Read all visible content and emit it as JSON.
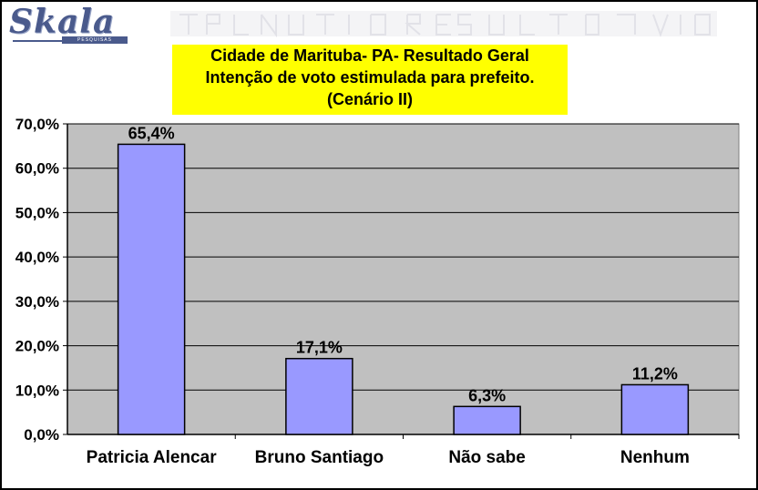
{
  "logo": {
    "text": "Skala",
    "subtitle": "PESQUISAS"
  },
  "title_lines": [
    "Cidade de Marituba- PA- Resultado Geral",
    "Intenção de voto estimulada para prefeito.",
    "(Cenário II)"
  ],
  "colors": {
    "bar": "#9999ff",
    "plot_background": "#c0c0c0",
    "title_background": "#ffff00",
    "logo": "#4a5a8c"
  },
  "chart_data": {
    "type": "bar",
    "title": "Cidade de Marituba- PA- Resultado Geral Intenção de voto estimulada para prefeito. (Cenário II)",
    "categories": [
      "Patricia Alencar",
      "Bruno Santiago",
      "Não sabe",
      "Nenhum"
    ],
    "values": [
      65.4,
      17.1,
      6.3,
      11.2
    ],
    "data_labels": [
      "65,4%",
      "17,1%",
      "6,3%",
      "11,2%"
    ],
    "ylim": [
      0,
      70
    ],
    "yticks": [
      0,
      10,
      20,
      30,
      40,
      50,
      60,
      70
    ],
    "ytick_labels": [
      "0,0%",
      "10,0%",
      "20,0%",
      "30,0%",
      "40,0%",
      "50,0%",
      "60,0%",
      "70,0%"
    ],
    "xlabel": "",
    "ylabel": "",
    "grid": true,
    "legend": "none"
  }
}
